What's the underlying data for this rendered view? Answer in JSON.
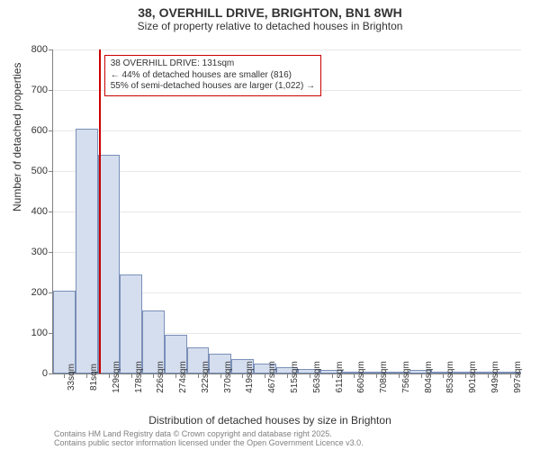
{
  "title": "38, OVERHILL DRIVE, BRIGHTON, BN1 8WH",
  "subtitle": "Size of property relative to detached houses in Brighton",
  "title_fontsize": 14,
  "subtitle_fontsize": 12,
  "chart": {
    "type": "histogram",
    "ylabel": "Number of detached properties",
    "xlabel": "Distribution of detached houses by size in Brighton",
    "label_fontsize": 12,
    "ylim": [
      0,
      800
    ],
    "ytick_step": 100,
    "background_color": "#ffffff",
    "grid_color": "#e8e8e8",
    "axis_color": "#808080",
    "bar_fill": "#d5deee",
    "bar_border": "#7a8fb8",
    "categories": [
      "33sqm",
      "81sqm",
      "129sqm",
      "178sqm",
      "226sqm",
      "274sqm",
      "322sqm",
      "370sqm",
      "419sqm",
      "467sqm",
      "515sqm",
      "563sqm",
      "611sqm",
      "660sqm",
      "708sqm",
      "756sqm",
      "804sqm",
      "853sqm",
      "901sqm",
      "949sqm",
      "997sqm"
    ],
    "values": [
      205,
      605,
      540,
      245,
      155,
      95,
      65,
      50,
      35,
      25,
      15,
      12,
      10,
      5,
      3,
      2,
      10,
      0,
      0,
      0,
      0
    ],
    "marker": {
      "position_index": 2.05,
      "color": "#cc0000"
    },
    "annotation": {
      "lines": [
        "38 OVERHILL DRIVE: 131sqm",
        "← 44% of detached houses are smaller (816)",
        "55% of semi-detached houses are larger (1,022) →"
      ],
      "border_color": "#cc0000",
      "fontsize": 10
    }
  },
  "footer": {
    "line1": "Contains HM Land Registry data © Crown copyright and database right 2025.",
    "line2": "Contains public sector information licensed under the Open Government Licence v3.0.",
    "color": "#808080",
    "fontsize": 9
  }
}
